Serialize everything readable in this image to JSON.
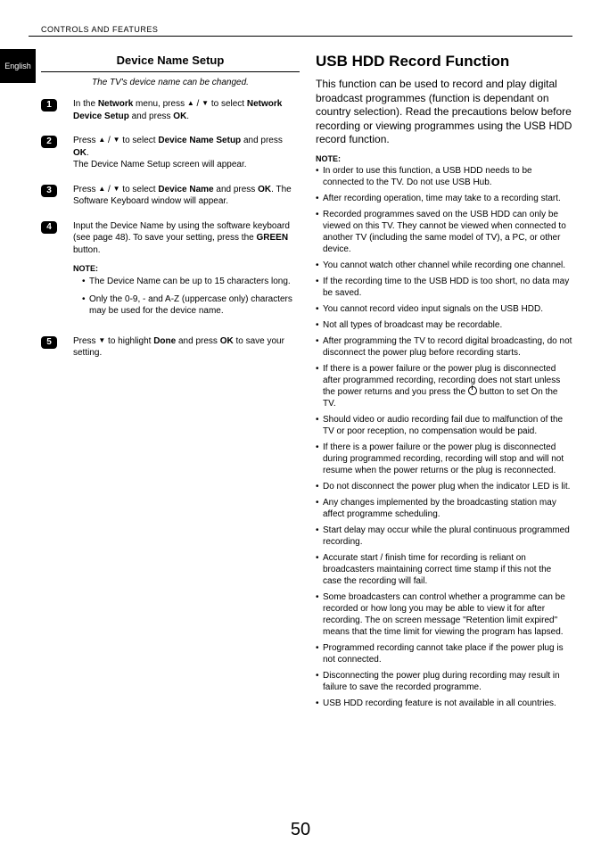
{
  "header": "CONTROLS AND FEATURES",
  "langTab": "English",
  "pageNumber": "50",
  "left": {
    "title": "Device Name Setup",
    "subtitle": "The TV's device name can be changed.",
    "steps": [
      {
        "num": "1",
        "html": "In the <b>Network</b> menu, press <span class='arrow'>▲</span> / <span class='arrow'>▼</span> to select <b>Network Device Setup</b> and press <b>OK</b>."
      },
      {
        "num": "2",
        "html": "Press <span class='arrow'>▲</span> / <span class='arrow'>▼</span> to select <b>Device Name Setup</b> and press <b>OK</b>.<br>The Device Name Setup screen will appear."
      },
      {
        "num": "3",
        "html": "Press <span class='arrow'>▲</span> / <span class='arrow'>▼</span> to select <b>Device Name</b> and press <b>OK</b>. The Software Keyboard window will appear."
      },
      {
        "num": "4",
        "html": "Input the Device Name by using the software keyboard (see page 48). To save your setting, press the <b>GREEN</b> button.",
        "noteLabel": "NOTE:",
        "notes": [
          "The Device Name can be up to 15 characters long.",
          "Only the 0-9, - and A-Z (uppercase only) characters may be used for the device name."
        ]
      },
      {
        "num": "5",
        "html": "Press <span class='arrow'>▼</span> to highlight <b>Done</b> and press <b>OK</b> to save your setting."
      }
    ]
  },
  "right": {
    "title": "USB HDD Record Function",
    "intro": "This function can be used to record and play digital broadcast programmes (function is dependant on country selection). Read the precautions below before recording or viewing programmes using the USB HDD record function.",
    "noteLabel": "NOTE:",
    "bullets": [
      "In order to use this function, a USB HDD needs to be connected to the TV. Do not use USB Hub.",
      "After recording operation, time may take to a recording start.",
      "Recorded programmes saved on the USB HDD can only be viewed on this TV. They cannot be viewed when connected to another TV (including the same model of TV), a PC, or other device.",
      "You cannot watch other channel while recording one channel.",
      "If the recording time to the USB HDD is too short, no data may be saved.",
      "You cannot record video input signals on the USB HDD.",
      "Not all types of broadcast may be recordable.",
      "After programming the TV to record digital broadcasting, do not disconnect the power plug before recording starts.",
      "__POWER__If there is a power failure or the power plug is disconnected after programmed recording, recording does not start unless the power returns and you press the __ICON__ button to set On the TV.",
      "Should video or audio recording fail due to malfunction of the TV or poor reception, no compensation would be paid.",
      "If there is a power failure or the power plug is disconnected during programmed recording, recording will stop and will not resume when the power returns or the plug is reconnected.",
      "Do not disconnect the power plug when the indicator LED is lit.",
      "Any changes implemented by the broadcasting station may affect programme scheduling.",
      "Start delay may occur while the plural continuous programmed recording.",
      "Accurate start / finish time for recording is reliant on broadcasters maintaining correct time stamp if this not the case the recording will fail.",
      "Some broadcasters can control whether a programme can be recorded or how long you may be able to view it for after recording. The on screen message \"Retention limit expired\" means that the time limit for viewing the program has lapsed.",
      "Programmed recording cannot take place if the power plug is not connected.",
      "Disconnecting the power plug during recording may result in failure to save the recorded programme.",
      "USB HDD recording feature is not available in all countries."
    ]
  }
}
